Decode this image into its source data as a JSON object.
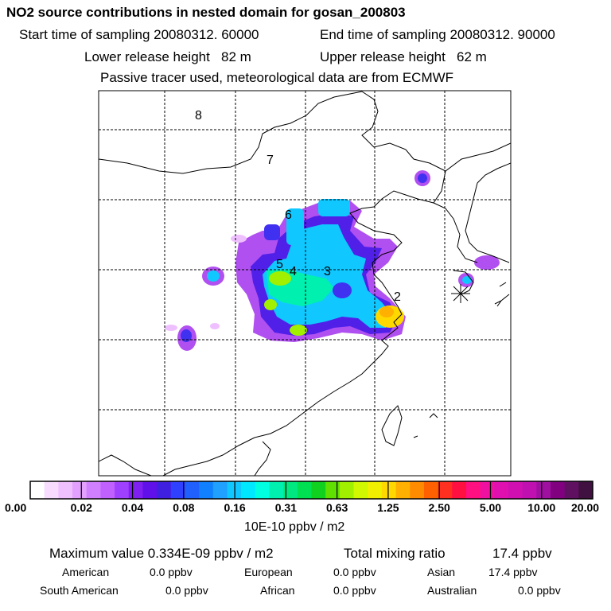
{
  "header": {
    "title": "NO2 source contributions in nested domain for gosan_200803",
    "start_time": "Start time of sampling 20080312. 60000",
    "end_time": "End time of sampling 20080312. 90000",
    "lower_release": "Lower release height   82 m",
    "upper_release": "Upper release height   62 m",
    "tracer_note": "Passive tracer used, meteorological data are from ECMWF"
  },
  "chart_data": {
    "type": "heatmap",
    "title": "NO2 source contributions in nested domain for gosan_200803",
    "region_labels": [
      "8",
      "7",
      "6",
      "5",
      "4",
      "3",
      "2"
    ],
    "colorbar": {
      "unit_label": "10E-10 ppbv / m2",
      "ticks": [
        "0.00",
        "0.02",
        "0.04",
        "0.08",
        "0.16",
        "0.31",
        "0.63",
        "1.25",
        "2.50",
        "5.00",
        "10.00",
        "20.00"
      ],
      "colors": [
        "#ffffff",
        "#f7dcff",
        "#efc0ff",
        "#e3a0ff",
        "#d080ff",
        "#c060ff",
        "#a040ff",
        "#8020f0",
        "#6010e8",
        "#4020e0",
        "#3040ff",
        "#2060ff",
        "#1080ff",
        "#20a0ff",
        "#10c8ff",
        "#00e8ff",
        "#00ffe0",
        "#00f0b0",
        "#00e880",
        "#00e050",
        "#10d020",
        "#60e000",
        "#a0f000",
        "#d0f800",
        "#f0f000",
        "#ffd800",
        "#ffb000",
        "#ff8c00",
        "#ff6000",
        "#ff3020",
        "#ff1040",
        "#ff1080",
        "#f010a0",
        "#e010b0",
        "#d010b0",
        "#c010b0",
        "#a010a0",
        "#800080",
        "#601060",
        "#401040"
      ]
    },
    "max_value": 0.334,
    "grid": "dashed"
  },
  "stats": {
    "max_value": "Maximum value  0.334E-09 ppbv / m2",
    "total_mixing": "Total mixing ratio",
    "total_mixing_value": "17.4 ppbv",
    "american_label": "American",
    "american_value": "0.0 ppbv",
    "european_label": "European",
    "european_value": "0.0 ppbv",
    "asian_label": "Asian",
    "asian_value": "17.4 ppbv",
    "south_american_label": "South American",
    "south_american_value": "0.0 ppbv",
    "african_label": "African",
    "african_value": "0.0 ppbv",
    "australian_label": "Australian",
    "australian_value": "0.0 ppbv"
  }
}
